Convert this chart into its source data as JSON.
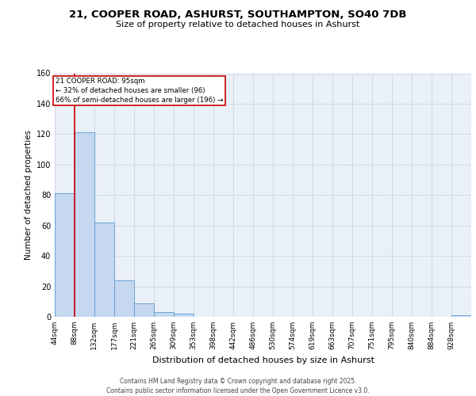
{
  "title1": "21, COOPER ROAD, ASHURST, SOUTHAMPTON, SO40 7DB",
  "title2": "Size of property relative to detached houses in Ashurst",
  "xlabel": "Distribution of detached houses by size in Ashurst",
  "ylabel": "Number of detached properties",
  "categories": [
    "44sqm",
    "88sqm",
    "132sqm",
    "177sqm",
    "221sqm",
    "265sqm",
    "309sqm",
    "353sqm",
    "398sqm",
    "442sqm",
    "486sqm",
    "530sqm",
    "574sqm",
    "619sqm",
    "663sqm",
    "707sqm",
    "751sqm",
    "795sqm",
    "840sqm",
    "884sqm",
    "928sqm"
  ],
  "bar_heights": [
    81,
    121,
    62,
    24,
    9,
    3,
    2,
    0,
    0,
    0,
    0,
    0,
    0,
    0,
    0,
    0,
    0,
    0,
    0,
    0,
    1
  ],
  "bar_color": "#c5d8f0",
  "bar_edge_color": "#5b9bd5",
  "grid_color": "#d0d8e8",
  "background_color": "#eaf0f8",
  "vline_x_bin": 1,
  "vline_color": "#cc0000",
  "annotation_title": "21 COOPER ROAD: 95sqm",
  "annotation_line1": "← 32% of detached houses are smaller (96)",
  "annotation_line2": "66% of semi-detached houses are larger (196) →",
  "annotation_box_color": "#cc0000",
  "annotation_bg": "#ffffff",
  "ylim": [
    0,
    160
  ],
  "yticks": [
    0,
    20,
    40,
    60,
    80,
    100,
    120,
    140,
    160
  ],
  "footer1": "Contains HM Land Registry data © Crown copyright and database right 2025.",
  "footer2": "Contains public sector information licensed under the Open Government Licence v3.0.",
  "bin_width": 44,
  "title1_fontsize": 9.5,
  "title2_fontsize": 8,
  "ylabel_fontsize": 7.5,
  "xlabel_fontsize": 8,
  "tick_fontsize": 6.5,
  "footer_fontsize": 5.5
}
